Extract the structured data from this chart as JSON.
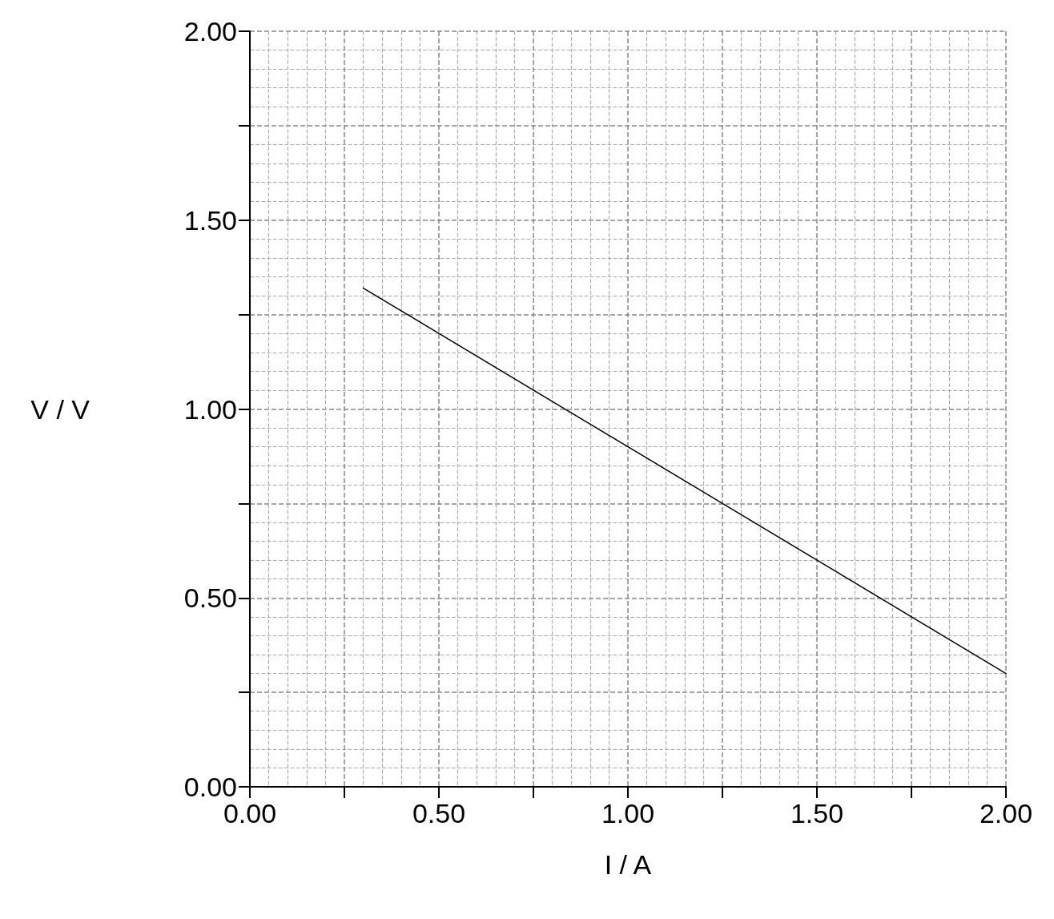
{
  "chart_data": {
    "type": "line",
    "xlabel": "I / A",
    "ylabel": "V / V",
    "series": [
      {
        "color": "#000000",
        "x": [
          0.3,
          2.0
        ],
        "values": [
          1.32,
          0.3
        ]
      }
    ],
    "xlim": [
      0,
      2
    ],
    "ylim": [
      0,
      2
    ],
    "xticks": [
      {
        "value": 0,
        "label": "0.00"
      },
      {
        "value": 0.25,
        "label": null
      },
      {
        "value": 0.5,
        "label": "0.50"
      },
      {
        "value": 0.75,
        "label": null
      },
      {
        "value": 1,
        "label": "1.00"
      },
      {
        "value": 1.25,
        "label": null
      },
      {
        "value": 1.5,
        "label": "1.50"
      },
      {
        "value": 1.75,
        "label": null
      },
      {
        "value": 2,
        "label": "2.00"
      }
    ],
    "yticks": [
      {
        "value": 0,
        "label": "0.00"
      },
      {
        "value": 0.25,
        "label": null
      },
      {
        "value": 0.5,
        "label": "0.50"
      },
      {
        "value": 0.75,
        "label": null
      },
      {
        "value": 1,
        "label": "1.00"
      },
      {
        "value": 1.25,
        "label": null
      },
      {
        "value": 1.5,
        "label": "1.50"
      },
      {
        "value": 1.75,
        "label": null
      },
      {
        "value": 2,
        "label": "2.00"
      }
    ],
    "grid": true,
    "marker": "none",
    "line_style": "solid"
  }
}
